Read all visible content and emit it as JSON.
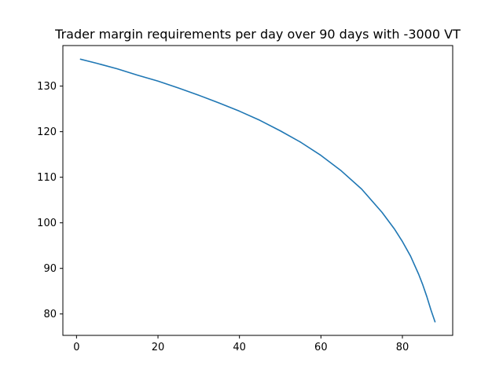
{
  "chart_data": {
    "type": "line",
    "title": "Trader margin requirements per day over 90 days with -3000 VT",
    "xlabel": "",
    "ylabel": "",
    "xlim": [
      -3.35,
      92.35
    ],
    "ylim": [
      75.3,
      138.9
    ],
    "xticks": [
      0,
      20,
      40,
      60,
      80
    ],
    "yticks": [
      80,
      90,
      100,
      110,
      120,
      130
    ],
    "grid": false,
    "color": "#1f77b4",
    "series": [
      {
        "x": [
          1,
          5,
          10,
          15,
          20,
          25,
          30,
          35,
          40,
          45,
          50,
          55,
          60,
          65,
          70,
          75,
          78,
          80,
          82,
          84,
          85,
          86,
          87,
          88
        ],
        "y": [
          135.9,
          135.0,
          133.8,
          132.4,
          131.1,
          129.6,
          128.0,
          126.3,
          124.5,
          122.5,
          120.2,
          117.7,
          114.8,
          111.4,
          107.4,
          102.3,
          98.7,
          95.9,
          92.7,
          88.7,
          86.4,
          83.8,
          80.9,
          78.3
        ]
      }
    ]
  }
}
